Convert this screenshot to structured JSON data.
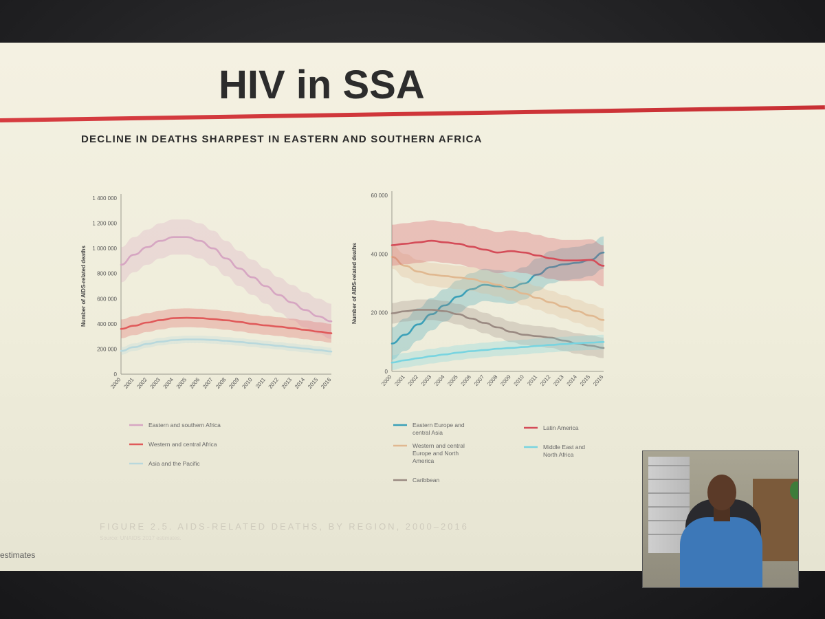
{
  "slide": {
    "title": "HIV in SSA",
    "heading": "DECLINE IN DEATHS SHARPEST IN EASTERN AND SOUTHERN AFRICA",
    "caption": "FIGURE 2.5. AIDS-RELATED DEATHS, BY REGION, 2000–2016",
    "source": "Source: UNAIDS 2017 estimates.",
    "footer": "estimates"
  },
  "colors": {
    "esa": "#d6a6c2",
    "wca": "#e05a5a",
    "ap": "#b8d8dc",
    "eeca": "#3aa0b8",
    "wcena": "#e0b890",
    "caribbean": "#9a8a82",
    "latam": "#d44c58",
    "mena": "#78d4e0",
    "red_rule": "#d63c40"
  },
  "chart_data": [
    {
      "type": "line",
      "ylabel": "Number of AIDS-related deaths",
      "ylim": [
        0,
        1400000
      ],
      "yticks": [
        "0",
        "200 000",
        "400 000",
        "600 000",
        "800 000",
        "1 000 000",
        "1 200 000",
        "1 400 000"
      ],
      "x": [
        "2000",
        "2001",
        "2002",
        "2003",
        "2004",
        "2005",
        "2006",
        "2007",
        "2008",
        "2009",
        "2010",
        "2011",
        "2012",
        "2013",
        "2014",
        "2015",
        "2016"
      ],
      "series": [
        {
          "name": "Eastern and southern Africa",
          "color_key": "esa",
          "values": [
            870000,
            950000,
            1010000,
            1060000,
            1090000,
            1090000,
            1060000,
            1000000,
            920000,
            840000,
            770000,
            700000,
            630000,
            570000,
            510000,
            460000,
            420000
          ],
          "band": 140000
        },
        {
          "name": "Western and central Africa",
          "color_key": "wca",
          "values": [
            360000,
            385000,
            410000,
            430000,
            445000,
            448000,
            445000,
            438000,
            428000,
            415000,
            400000,
            388000,
            378000,
            366000,
            352000,
            338000,
            325000
          ],
          "band": 75000
        },
        {
          "name": "Asia and the Pacific",
          "color_key": "ap",
          "values": [
            185000,
            215000,
            240000,
            258000,
            270000,
            276000,
            276000,
            272000,
            265000,
            256000,
            246000,
            235000,
            225000,
            214000,
            203000,
            192000,
            180000
          ],
          "band": 30000
        }
      ],
      "legend": [
        "Eastern and southern Africa",
        "Western and central Africa",
        "Asia and the Pacific"
      ],
      "legend_placement": "bottom"
    },
    {
      "type": "line",
      "ylabel": "Number of AIDS-related deaths",
      "ylim": [
        0,
        60000
      ],
      "yticks": [
        "0",
        "20 000",
        "40 000",
        "60 000"
      ],
      "x": [
        "2000",
        "2001",
        "2002",
        "2003",
        "2004",
        "2005",
        "2006",
        "2007",
        "2008",
        "2009",
        "2010",
        "2011",
        "2012",
        "2013",
        "2014",
        "2015",
        "2016"
      ],
      "series": [
        {
          "name": "Eastern Europe and central Asia",
          "color_key": "eeca",
          "values": [
            9500,
            12500,
            16000,
            19500,
            22500,
            25500,
            28000,
            29500,
            29000,
            28500,
            30000,
            33000,
            35500,
            36500,
            37000,
            38000,
            40500
          ],
          "band": 5500
        },
        {
          "name": "Western and central Europe and North America",
          "color_key": "wcena",
          "values": [
            39000,
            36000,
            34000,
            33000,
            32500,
            32000,
            31500,
            30500,
            29500,
            28000,
            26500,
            25000,
            23500,
            22000,
            20500,
            19000,
            17500
          ],
          "band": 4000
        },
        {
          "name": "Caribbean",
          "color_key": "caribbean",
          "values": [
            19800,
            20500,
            21000,
            21000,
            20500,
            19500,
            18000,
            16500,
            15000,
            13500,
            12500,
            12000,
            11500,
            10500,
            9500,
            8800,
            8000
          ],
          "band": 3500
        },
        {
          "name": "Latin America",
          "color_key": "latam",
          "values": [
            43000,
            43500,
            44000,
            44500,
            44000,
            43500,
            42500,
            41500,
            40500,
            41000,
            40500,
            39500,
            38500,
            37800,
            37800,
            38000,
            36000
          ],
          "band": 7000
        },
        {
          "name": "Middle East and North Africa",
          "color_key": "mena",
          "values": [
            3000,
            3800,
            4500,
            5200,
            5800,
            6400,
            6900,
            7300,
            7700,
            8000,
            8300,
            8700,
            9000,
            9300,
            9600,
            9800,
            10000
          ],
          "band": 2500
        }
      ],
      "legend": [
        "Eastern Europe and central Asia",
        "Latin America",
        "Western and central Europe and North America",
        "Middle East and North Africa",
        "Caribbean"
      ],
      "legend_placement": "bottom"
    }
  ]
}
